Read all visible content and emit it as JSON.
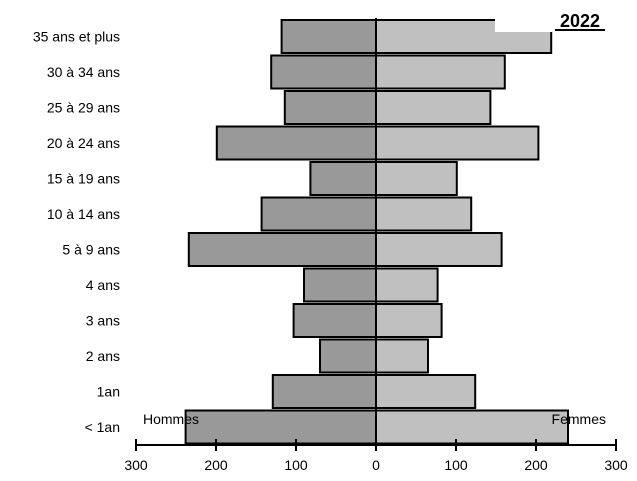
{
  "chart_data": {
    "type": "bar",
    "orientation": "horizontal-pyramid",
    "title": "2022",
    "categories": [
      "35 ans et plus",
      "30 à 34 ans",
      "25 à 29 ans",
      "20 à 24 ans",
      "15 à 19 ans",
      "10 à 14 ans",
      "5 à 9 ans",
      "4 ans",
      "3 ans",
      "2 ans",
      "1an",
      "< 1an"
    ],
    "series": [
      {
        "name": "Hommes",
        "side": "left",
        "color": "#999999",
        "values": [
          118,
          131,
          114,
          199,
          82,
          143,
          234,
          90,
          103,
          70,
          129,
          238
        ]
      },
      {
        "name": "Femmes",
        "side": "right",
        "color": "#c0c0c0",
        "values": [
          219,
          161,
          143,
          203,
          101,
          119,
          157,
          77,
          82,
          65,
          124,
          240
        ]
      }
    ],
    "xlim": [
      -300,
      300
    ],
    "xticks": [
      {
        "value": -300,
        "label": "300"
      },
      {
        "value": -200,
        "label": "200"
      },
      {
        "value": -100,
        "label": "100"
      },
      {
        "value": 0,
        "label": "0"
      },
      {
        "value": 100,
        "label": "100"
      },
      {
        "value": 200,
        "label": "200"
      },
      {
        "value": 300,
        "label": "300"
      }
    ],
    "grid": false,
    "legend": "none"
  }
}
